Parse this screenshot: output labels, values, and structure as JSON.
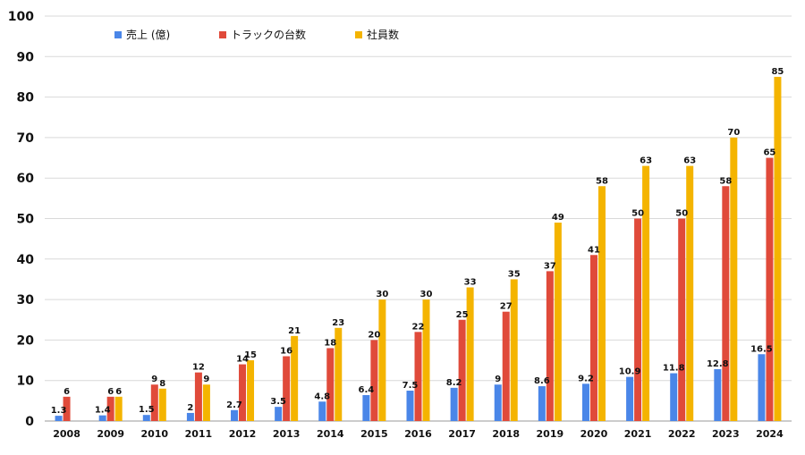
{
  "chart_data": {
    "type": "bar",
    "title": "",
    "xlabel": "",
    "ylabel": "",
    "ylim": [
      0,
      100
    ],
    "yticks": [
      0,
      10,
      20,
      30,
      40,
      50,
      60,
      70,
      80,
      90,
      100
    ],
    "grid": true,
    "legend_position": "top-left",
    "categories": [
      "2008",
      "2009",
      "2010",
      "2011",
      "2012",
      "2013",
      "2014",
      "2015",
      "2016",
      "2017",
      "2018",
      "2019",
      "2020",
      "2021",
      "2022",
      "2023",
      "2024"
    ],
    "series": [
      {
        "name": "売上 (億)",
        "color": "#4a86e8",
        "values": [
          1.3,
          1.4,
          1.5,
          2,
          2.7,
          3.5,
          4.8,
          6.4,
          7.5,
          8.2,
          9,
          8.6,
          9.2,
          10.9,
          11.8,
          12.8,
          16.5
        ]
      },
      {
        "name": "トラックの台数",
        "color": "#e04a3a",
        "values": [
          6,
          6,
          9,
          12,
          14,
          16,
          18,
          20,
          22,
          25,
          27,
          37,
          41,
          50,
          50,
          58,
          65
        ]
      },
      {
        "name": "社員数",
        "color": "#f4b400",
        "values": [
          null,
          6,
          8,
          9,
          15,
          21,
          23,
          30,
          30,
          33,
          35,
          49,
          58,
          63,
          63,
          70,
          85
        ]
      }
    ]
  }
}
